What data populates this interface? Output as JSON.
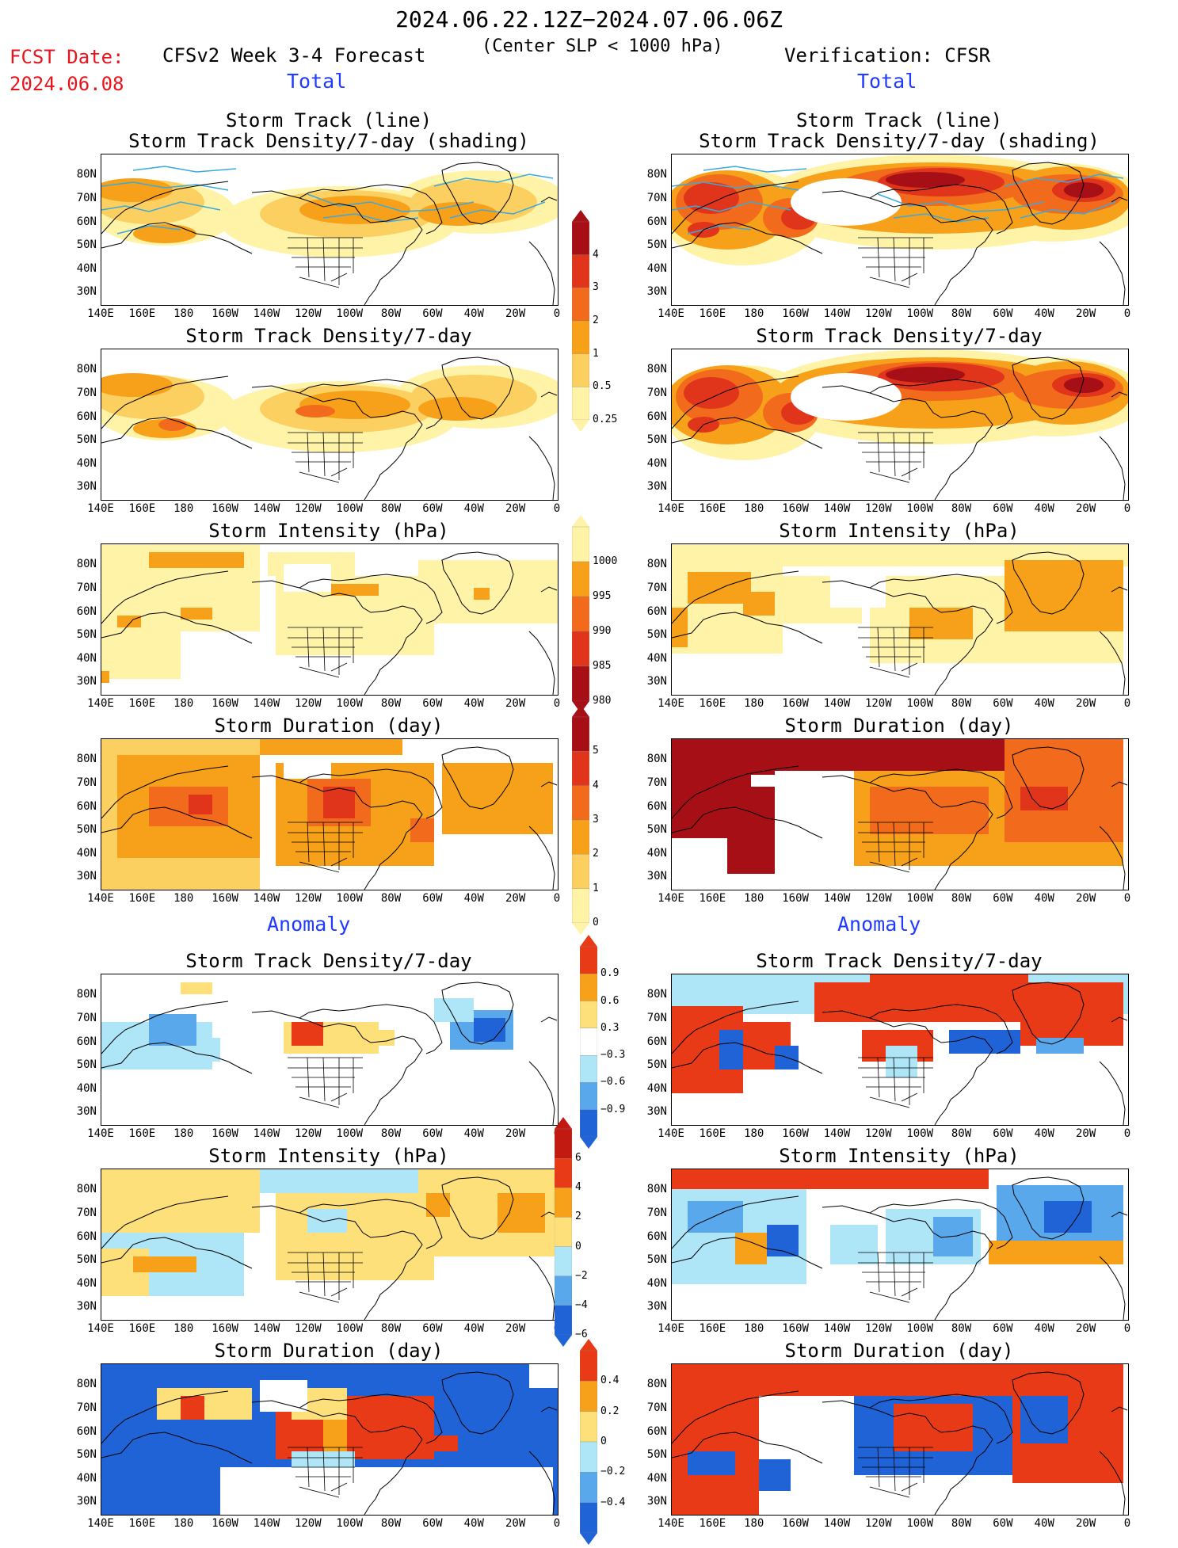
{
  "header": {
    "date_range": "2024.06.22.12Z−2024.07.06.06Z",
    "fcst_label": "FCST Date:",
    "fcst_date": "2024.06.08",
    "model_title": "CFSv2 Week 3-4 Forecast",
    "slp_note": "(Center SLP < 1000 hPa)",
    "verification": "Verification: CFSR"
  },
  "sections": {
    "total": "Total",
    "anomaly": "Anomaly"
  },
  "panel_titles": {
    "track_line": "Storm Track (line)",
    "track_density_shading": "Storm Track Density/7-day (shading)",
    "track_density": "Storm Track Density/7-day",
    "intensity": "Storm Intensity (hPa)",
    "duration": "Storm Duration (day)"
  },
  "axes": {
    "lat_labels": [
      "80N",
      "70N",
      "60N",
      "50N",
      "40N",
      "30N"
    ],
    "lon_labels": [
      "140E",
      "160E",
      "180",
      "160W",
      "140W",
      "120W",
      "100W",
      "80W",
      "60W",
      "40W",
      "20W",
      "0"
    ]
  },
  "colorbars": {
    "density": {
      "labels": [
        "4",
        "3",
        "2",
        "1",
        "0.5",
        "0.25"
      ],
      "colors": [
        "#a50f15",
        "#e0351b",
        "#f26b1d",
        "#f7a11a",
        "#fcd060",
        "#fff3a8"
      ]
    },
    "intensity": {
      "labels": [
        "1000",
        "995",
        "990",
        "985",
        "980"
      ],
      "colors": [
        "#fff3a8",
        "#f7a11a",
        "#f26b1d",
        "#e0351b",
        "#a50f15"
      ]
    },
    "duration": {
      "labels": [
        "5",
        "4",
        "3",
        "2",
        "1",
        "0"
      ],
      "colors": [
        "#a50f15",
        "#e0351b",
        "#f26b1d",
        "#f7a11a",
        "#fcd060",
        "#fff3a8"
      ]
    },
    "density_anom": {
      "labels": [
        "0.9",
        "0.6",
        "0.3",
        "−0.3",
        "−0.6",
        "−0.9"
      ],
      "colors": [
        "#e83a16",
        "#f7a11a",
        "#fde07a",
        "#ffffff",
        "#aee5f7",
        "#5aa8ec",
        "#1f63d6"
      ]
    },
    "intensity_anom": {
      "labels": [
        "6",
        "4",
        "2",
        "0",
        "−2",
        "−4",
        "−6"
      ],
      "colors": [
        "#c21a10",
        "#e83a16",
        "#f7a11a",
        "#fde07a",
        "#aee5f7",
        "#5aa8ec",
        "#1f63d6"
      ]
    },
    "duration_anom": {
      "labels": [
        "0.4",
        "0.2",
        "0",
        "−0.2",
        "−0.4"
      ],
      "colors": [
        "#e83a16",
        "#f7a11a",
        "#fde07a",
        "#aee5f7",
        "#5aa8ec",
        "#1f63d6"
      ]
    }
  },
  "map_colors": {
    "land_line": "#000000",
    "track_line": "#3aa9df"
  }
}
